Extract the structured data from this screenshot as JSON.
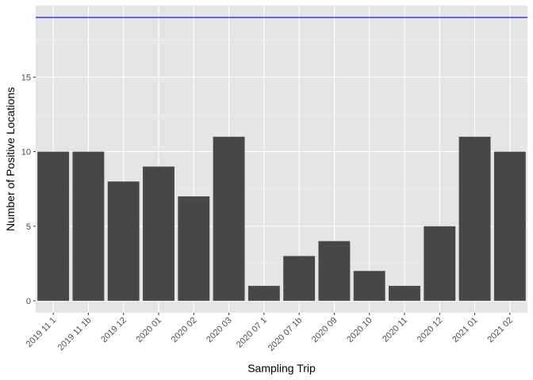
{
  "chart_data": {
    "type": "bar",
    "title": "",
    "xlabel": "Sampling Trip",
    "ylabel": "Number of Positive Locations",
    "categories": [
      "2019 11 1",
      "2019 11 1b",
      "2019 12",
      "2020 01",
      "2020 02",
      "2020 03",
      "2020 07 1",
      "2020 07 1b",
      "2020 09",
      "2020 10",
      "2020 11",
      "2020 12",
      "2021 01",
      "2021 02"
    ],
    "values": [
      10,
      10,
      8,
      9,
      7,
      11,
      1,
      3,
      4,
      2,
      1,
      5,
      11,
      10
    ],
    "ylim": [
      -0.8,
      19.8
    ],
    "yticks": [
      0,
      5,
      10,
      15
    ],
    "reference_line": {
      "y": 19,
      "color": "#0000ff"
    },
    "bar_color": "#474747",
    "panel_color": "#e5e5e5",
    "grid": true,
    "legend": "none"
  }
}
